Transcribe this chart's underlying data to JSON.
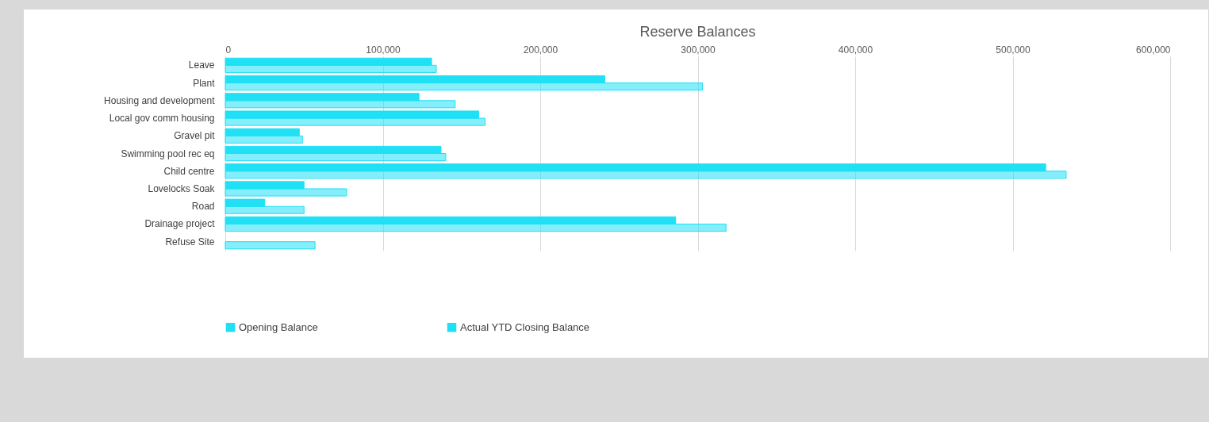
{
  "chart_data": {
    "type": "bar",
    "orientation": "horizontal",
    "title": "Reserve Balances",
    "categories": [
      "Leave",
      "Plant",
      "Housing and development",
      "Local gov comm housing",
      "Gravel pit",
      "Swimming pool rec eq",
      "Child centre",
      "Lovelocks Soak",
      "Road",
      "Drainage project",
      "Refuse Site"
    ],
    "series": [
      {
        "name": "Opening Balance",
        "color": "#1fe0f5",
        "values": [
          131000,
          241000,
          123000,
          161000,
          47000,
          137000,
          521000,
          50000,
          25000,
          286000,
          null
        ]
      },
      {
        "name": "Actual YTD Closing Balance",
        "color": "#1fe0f5",
        "values": [
          134000,
          303000,
          146000,
          165000,
          49000,
          140000,
          534000,
          77000,
          50000,
          318000,
          57000
        ]
      }
    ],
    "xlim": [
      0,
      600000
    ],
    "xticks": [
      0,
      {
        "value": 100000,
        "label": "100,000"
      },
      {
        "value": 200000,
        "label": "200,000"
      },
      {
        "value": 300000,
        "label": "300,000"
      },
      {
        "value": 400000,
        "label": "400,000"
      },
      {
        "value": 500000,
        "label": "500,000"
      },
      {
        "value": 600000,
        "label": "600,000"
      }
    ],
    "grid": "x",
    "legend": "bottom"
  }
}
